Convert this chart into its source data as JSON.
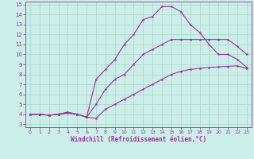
{
  "xlabel": "Windchill (Refroidissement éolien,°C)",
  "bg_color": "#cceee8",
  "grid_color": "#aad4ce",
  "line_color": "#993399",
  "xlim": [
    -0.5,
    23.5
  ],
  "ylim": [
    2.7,
    15.3
  ],
  "xticks": [
    0,
    1,
    2,
    3,
    4,
    5,
    6,
    7,
    8,
    9,
    10,
    11,
    12,
    13,
    14,
    15,
    16,
    17,
    18,
    19,
    20,
    21,
    22,
    23
  ],
  "yticks": [
    3,
    4,
    5,
    6,
    7,
    8,
    9,
    10,
    11,
    12,
    13,
    14,
    15
  ],
  "line1_x": [
    0,
    1,
    2,
    3,
    4,
    5,
    6,
    7,
    8,
    9,
    10,
    11,
    12,
    13,
    14,
    15,
    16,
    17,
    18,
    19,
    20,
    21,
    22,
    23
  ],
  "line1_y": [
    4.0,
    4.0,
    3.9,
    4.0,
    4.1,
    4.0,
    3.7,
    3.6,
    4.5,
    5.0,
    5.5,
    6.0,
    6.5,
    7.0,
    7.5,
    8.0,
    8.3,
    8.5,
    8.6,
    8.7,
    8.75,
    8.8,
    8.85,
    8.6
  ],
  "line2_x": [
    0,
    1,
    2,
    3,
    4,
    5,
    6,
    7,
    8,
    9,
    10,
    11,
    12,
    13,
    14,
    15,
    16,
    17,
    18,
    19,
    20,
    21,
    22,
    23
  ],
  "line2_y": [
    4.0,
    4.0,
    3.9,
    4.0,
    4.2,
    4.0,
    3.7,
    5.0,
    6.5,
    7.5,
    8.0,
    9.0,
    10.0,
    10.5,
    11.0,
    11.5,
    11.5,
    11.5,
    11.5,
    11.5,
    11.5,
    11.5,
    10.8,
    10.0
  ],
  "line3_x": [
    0,
    1,
    2,
    3,
    4,
    5,
    6,
    7,
    8,
    9,
    10,
    11,
    12,
    13,
    14,
    15,
    16,
    17,
    18,
    19,
    20,
    21,
    22,
    23
  ],
  "line3_y": [
    4.0,
    4.0,
    3.9,
    4.0,
    4.2,
    4.0,
    3.7,
    7.5,
    8.5,
    9.5,
    11.0,
    12.0,
    13.5,
    13.8,
    14.8,
    14.8,
    14.3,
    13.0,
    12.2,
    11.0,
    10.0,
    10.0,
    9.5,
    8.7
  ]
}
